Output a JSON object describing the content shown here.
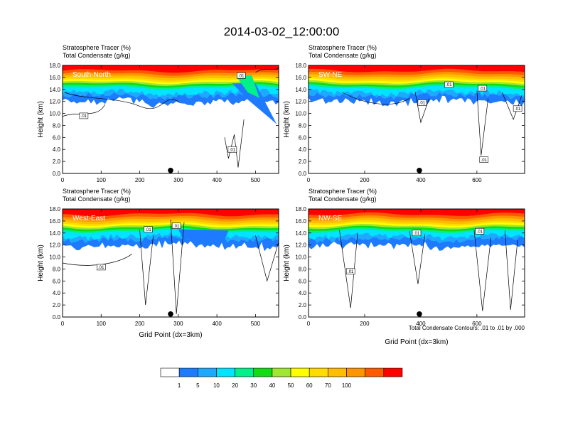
{
  "figure": {
    "title": "2014-03-02_12:00:00",
    "contour_note": "Total Condensate Contours: .01 to .01 by .000"
  },
  "colorbar": {
    "colors": [
      "#ffffff",
      "#1e7bff",
      "#1ea8ff",
      "#00e4ff",
      "#00f08a",
      "#14dc14",
      "#a0e632",
      "#ffff00",
      "#ffdc00",
      "#ffbe00",
      "#ff9600",
      "#ff5a00",
      "#ff0000"
    ],
    "labels": [
      "1",
      "5",
      "10",
      "20",
      "30",
      "40",
      "50",
      "60",
      "70",
      "100"
    ]
  },
  "chart_data": [
    {
      "type": "heatmap",
      "panel_label": "South-North",
      "subtitle_line1": "Stratosphere Tracer   (%)",
      "subtitle_line2": "Total Condensate   (g/kg)",
      "ylabel": "Height (km)",
      "xlabel": "",
      "xlim": [
        0,
        560
      ],
      "ylim": [
        0,
        18
      ],
      "xticks": [
        "0",
        "100",
        "200",
        "300",
        "400",
        "500"
      ],
      "xtick_values": [
        0,
        100,
        200,
        300,
        400,
        500
      ],
      "yticks": [
        "0.0",
        "2.0",
        "4.0",
        "6.0",
        "8.0",
        "10.0",
        "12.0",
        "14.0",
        "16.0",
        "18.0"
      ],
      "marker_x": 280,
      "contour_labels": [
        {
          "text": ".01",
          "x": 463,
          "y": 16.3
        },
        {
          "text": ".01",
          "x": 55,
          "y": 9.6
        },
        {
          "text": ".01",
          "x": 440,
          "y": 4.0
        }
      ]
    },
    {
      "type": "heatmap",
      "panel_label": "SW-NE",
      "subtitle_line1": "Stratosphere Tracer   (%)",
      "subtitle_line2": "Total Condensate   (g/kg)",
      "ylabel": "Height (km)",
      "xlabel": "",
      "xlim": [
        0,
        770
      ],
      "ylim": [
        0,
        18
      ],
      "xticks": [
        "0",
        "200",
        "400",
        "600"
      ],
      "xtick_values": [
        0,
        200,
        400,
        600
      ],
      "yticks": [
        "0.0",
        "2.0",
        "4.0",
        "6.0",
        "8.0",
        "10.0",
        "12.0",
        "14.0",
        "16.0",
        "18.0"
      ],
      "marker_x": 395,
      "contour_labels": [
        {
          "text": ".01",
          "x": 500,
          "y": 14.8
        },
        {
          "text": ".01",
          "x": 620,
          "y": 14.2
        },
        {
          "text": ".01",
          "x": 405,
          "y": 11.8
        },
        {
          "text": ".01",
          "x": 745,
          "y": 10.8
        },
        {
          "text": ".01",
          "x": 625,
          "y": 2.3
        }
      ]
    },
    {
      "type": "heatmap",
      "panel_label": "West-East",
      "subtitle_line1": "Stratosphere Tracer   (%)",
      "subtitle_line2": "Total Condensate   (g/kg)",
      "ylabel": "Height (km)",
      "xlabel": "Grid Point (dx=3km)",
      "xlim": [
        0,
        560
      ],
      "ylim": [
        0,
        18
      ],
      "xticks": [
        "0",
        "100",
        "200",
        "300",
        "400",
        "500"
      ],
      "xtick_values": [
        0,
        100,
        200,
        300,
        400,
        500
      ],
      "yticks": [
        "0.0",
        "2.0",
        "4.0",
        "6.0",
        "8.0",
        "10.0",
        "12.0",
        "14.0",
        "16.0",
        "18.0"
      ],
      "marker_x": 280,
      "contour_labels": [
        {
          "text": ".01",
          "x": 222,
          "y": 14.6
        },
        {
          "text": ".01",
          "x": 295,
          "y": 15.2
        },
        {
          "text": ".01",
          "x": 100,
          "y": 8.3
        }
      ]
    },
    {
      "type": "heatmap",
      "panel_label": "NW-SE",
      "subtitle_line1": "Stratosphere Tracer   (%)",
      "subtitle_line2": "Total Condensate   (g/kg)",
      "ylabel": "Height (km)",
      "xlabel": "Grid Point (dx=3km)",
      "xlim": [
        0,
        770
      ],
      "ylim": [
        0,
        18
      ],
      "xticks": [
        "0",
        "200",
        "400",
        "600"
      ],
      "xtick_values": [
        0,
        200,
        400,
        600
      ],
      "yticks": [
        "0.0",
        "2.0",
        "4.0",
        "6.0",
        "8.0",
        "10.0",
        "12.0",
        "14.0",
        "16.0",
        "18.0"
      ],
      "marker_x": 395,
      "contour_labels": [
        {
          "text": ".01",
          "x": 385,
          "y": 14.0
        },
        {
          "text": ".01",
          "x": 610,
          "y": 14.3
        },
        {
          "text": ".01",
          "x": 150,
          "y": 7.6
        }
      ]
    }
  ]
}
